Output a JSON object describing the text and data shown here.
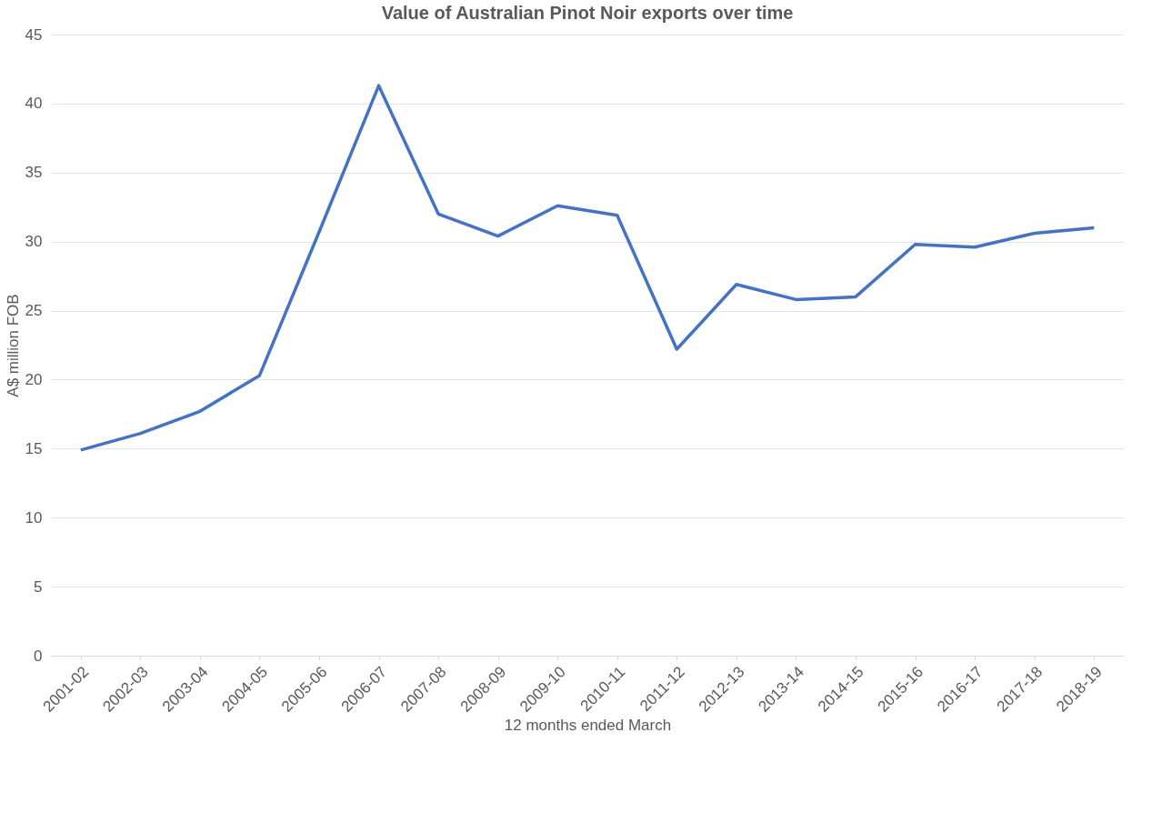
{
  "chart_data": {
    "type": "line",
    "title": "Value of Australian Pinot Noir exports over time",
    "xlabel": "12 months ended March",
    "ylabel": "A$ million FOB",
    "categories": [
      "2001-02",
      "2002-03",
      "2003-04",
      "2004-05",
      "2005-06",
      "2006-07",
      "2007-08",
      "2008-09",
      "2009-10",
      "2010-11",
      "2011-12",
      "2012-13",
      "2013-14",
      "2014-15",
      "2015-16",
      "2016-17",
      "2017-18",
      "2018-19"
    ],
    "series": [
      {
        "color": "#4472c4",
        "values": [
          14.9,
          16.1,
          17.7,
          20.3,
          30.7,
          41.3,
          32.0,
          30.4,
          32.6,
          31.9,
          22.2,
          26.9,
          25.8,
          26.0,
          29.8,
          29.6,
          30.6,
          31.0
        ]
      }
    ],
    "ylim": [
      0,
      45
    ],
    "yticks": [
      0,
      5,
      10,
      15,
      20,
      25,
      30,
      35,
      40,
      45
    ],
    "grid": "y",
    "marker": "none",
    "line_style": "solid"
  }
}
